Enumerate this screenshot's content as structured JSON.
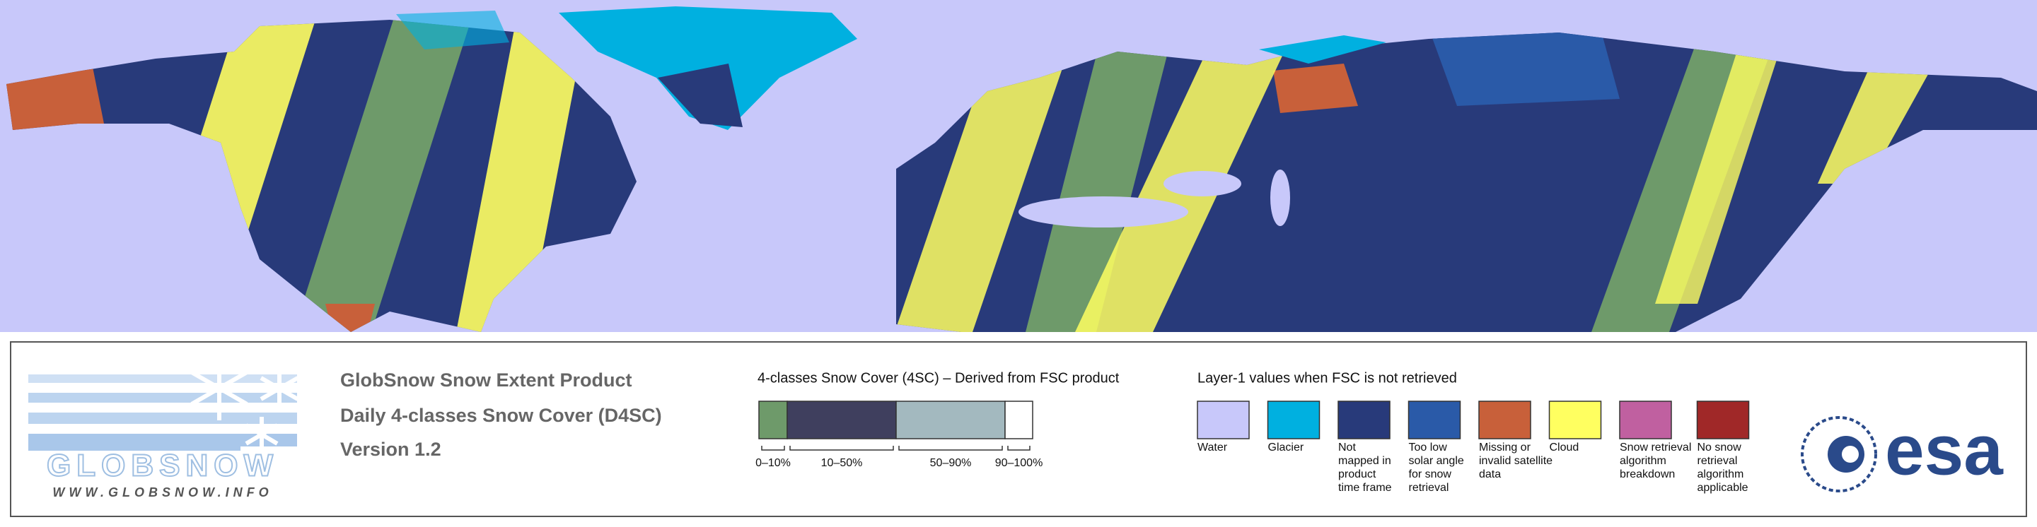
{
  "header": {
    "title_lines": [
      "GlobSnow Snow Extent Product",
      "Daily 4-classes Snow Cover (D4SC)",
      "Version 1.2"
    ]
  },
  "logo": {
    "name": "GLOBSNOW",
    "url": "WWW.GLOBSNOW.INFO"
  },
  "scale_legend": {
    "title": "4-classes Snow Cover (4SC) – Derived from FSC product",
    "classes": [
      {
        "label": "0–10%",
        "color": "#6e9a6a"
      },
      {
        "label": "10–50%",
        "color": "#3f3f5e"
      },
      {
        "label": "50–90%",
        "color": "#a3b9bf"
      },
      {
        "label": "90–100%",
        "color": "#ffffff"
      }
    ]
  },
  "layer_legend": {
    "title": "Layer-1 values when FSC is not retrieved",
    "items": [
      {
        "label_lines": [
          "Water"
        ],
        "color": "#c8c8fa"
      },
      {
        "label_lines": [
          "Glacier"
        ],
        "color": "#00b0e0"
      },
      {
        "label_lines": [
          "Not",
          "mapped in",
          "product",
          "time frame"
        ],
        "color": "#283a7a"
      },
      {
        "label_lines": [
          "Too low",
          "solar angle",
          "for snow",
          "retrieval"
        ],
        "color": "#2a5aa8"
      },
      {
        "label_lines": [
          "Missing or",
          "invalid satellite",
          "data"
        ],
        "color": "#c8603a"
      },
      {
        "label_lines": [
          "Cloud"
        ],
        "color": "#ffff60"
      },
      {
        "label_lines": [
          "Snow retrieval",
          "algorithm",
          "breakdown"
        ],
        "color": "#c060a0"
      },
      {
        "label_lines": [
          "No snow",
          "retrieval",
          "algorithm",
          "applicable"
        ],
        "color": "#a02828"
      }
    ]
  },
  "agency_logo": {
    "name": "esa"
  }
}
